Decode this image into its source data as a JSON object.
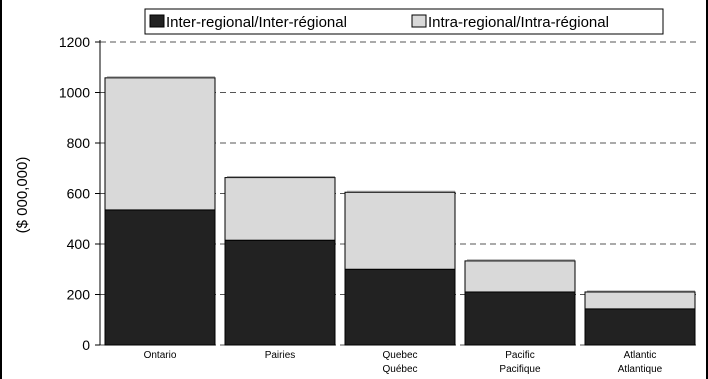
{
  "chart_data": {
    "type": "bar",
    "stacked": true,
    "categories": [
      [
        "Ontario"
      ],
      [
        "Pairies"
      ],
      [
        "Quebec",
        "Québec"
      ],
      [
        "Pacific",
        "Pacifique"
      ],
      [
        "Atlantic",
        "Atlantique"
      ]
    ],
    "series": [
      {
        "name": "Inter-regional/Inter-régional",
        "color": "#222222",
        "values": [
          535,
          415,
          300,
          210,
          143
        ]
      },
      {
        "name": "Intra-regional/Intra-régional",
        "color": "#d9d9d9",
        "values": [
          523,
          248,
          305,
          123,
          67
        ]
      }
    ],
    "ylabel": "($ 000,000)",
    "ylim": [
      0,
      1200
    ],
    "yticks": [
      0,
      200,
      400,
      600,
      800,
      1000,
      1200
    ],
    "grid": true,
    "legend": "top"
  }
}
